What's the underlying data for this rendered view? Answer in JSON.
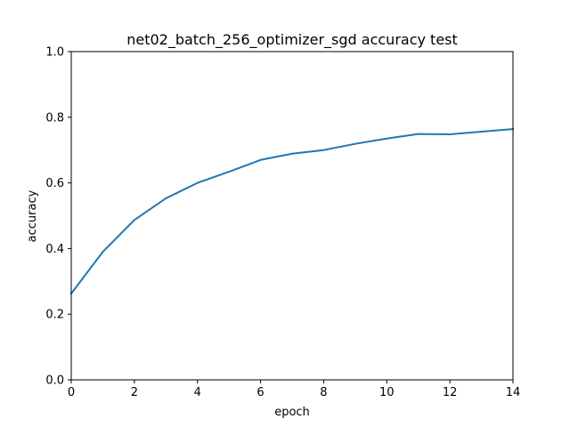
{
  "chart_data": {
    "type": "line",
    "title": "net02_batch_256_optimizer_sgd accuracy test",
    "xlabel": "epoch",
    "ylabel": "accuracy",
    "xlim": [
      0,
      14
    ],
    "ylim": [
      0.0,
      1.0
    ],
    "x_ticks": [
      "0",
      "2",
      "4",
      "6",
      "8",
      "10",
      "12",
      "14"
    ],
    "y_ticks": [
      "0.0",
      "0.2",
      "0.4",
      "0.6",
      "0.8",
      "1.0"
    ],
    "grid": false,
    "legend": "none",
    "series": [
      {
        "color": "#1f77b4",
        "x": [
          0,
          1,
          2,
          3,
          4,
          5,
          6,
          7,
          8,
          9,
          10,
          11,
          12,
          13,
          14
        ],
        "values": [
          0.263,
          0.39,
          0.487,
          0.553,
          0.6,
          0.634,
          0.67,
          0.689,
          0.7,
          0.719,
          0.735,
          0.749,
          0.748,
          0.756,
          0.764
        ]
      }
    ]
  }
}
